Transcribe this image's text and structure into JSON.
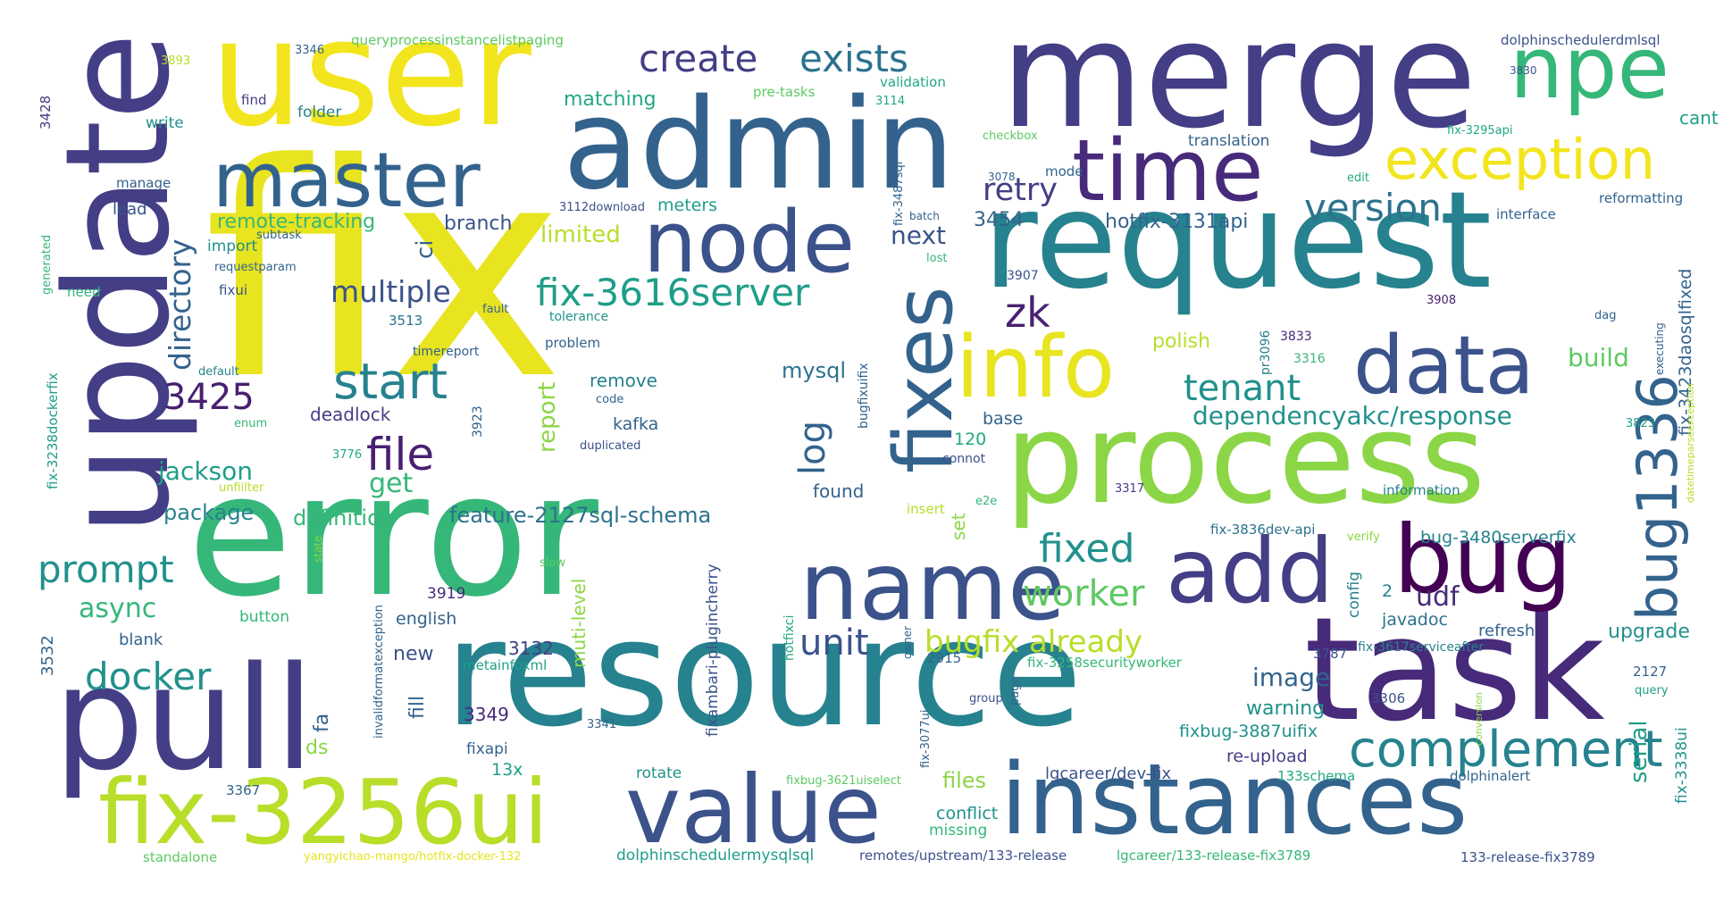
{
  "palette": {
    "c1": "#e8e41f",
    "c2": "#f2e51d",
    "c3": "#b8de29",
    "c4": "#8bd646",
    "c5": "#5ec962",
    "c6": "#35b779",
    "c7": "#22a884",
    "c8": "#1f9e89",
    "c9": "#21918c",
    "c10": "#26828e",
    "c11": "#2c728e",
    "c12": "#33638d",
    "c13": "#3b528b",
    "c14": "#433e85",
    "c15": "#472a7a",
    "c16": "#482071",
    "c17": "#440154"
  },
  "words": [
    {
      "text": "fix",
      "color": "c1"
    },
    {
      "text": "error",
      "color": "c6"
    },
    {
      "text": "resource",
      "color": "c10"
    },
    {
      "text": "merge",
      "color": "c14"
    },
    {
      "text": "user",
      "color": "c2"
    },
    {
      "text": "request",
      "color": "c10"
    },
    {
      "text": "process",
      "color": "c4"
    },
    {
      "text": "update",
      "color": "c14"
    },
    {
      "text": "admin",
      "color": "c12"
    },
    {
      "text": "pull",
      "color": "c14"
    },
    {
      "text": "task",
      "color": "c15"
    },
    {
      "text": "instances",
      "color": "c12"
    },
    {
      "text": "value",
      "color": "c13"
    },
    {
      "text": "fix-3256ui",
      "color": "c3"
    },
    {
      "text": "name",
      "color": "c13"
    },
    {
      "text": "master",
      "color": "c12"
    },
    {
      "text": "node",
      "color": "c13"
    },
    {
      "text": "time",
      "color": "c15"
    },
    {
      "text": "npe",
      "color": "c6"
    },
    {
      "text": "exception",
      "color": "c2"
    },
    {
      "text": "info",
      "color": "c1"
    },
    {
      "text": "data",
      "color": "c13"
    },
    {
      "text": "add",
      "color": "c14"
    },
    {
      "text": "bug",
      "color": "c17"
    },
    {
      "text": "fixes",
      "color": "c12"
    },
    {
      "text": "bug1336",
      "color": "c12"
    },
    {
      "text": "complement",
      "color": "c10"
    },
    {
      "text": "create",
      "color": "c14"
    },
    {
      "text": "exists",
      "color": "c11"
    },
    {
      "text": "version",
      "color": "c11"
    },
    {
      "text": "fix-3616server",
      "color": "c8"
    },
    {
      "text": "start",
      "color": "c10"
    },
    {
      "text": "3425",
      "color": "c16"
    },
    {
      "text": "file",
      "color": "c16"
    },
    {
      "text": "multiple",
      "color": "c13"
    },
    {
      "text": "zk",
      "color": "c16"
    },
    {
      "text": "retry",
      "color": "c14"
    },
    {
      "text": "next",
      "color": "c13"
    },
    {
      "text": "tenant",
      "color": "c9"
    },
    {
      "text": "directory",
      "color": "c12"
    },
    {
      "text": "prompt",
      "color": "c9"
    },
    {
      "text": "docker",
      "color": "c9"
    },
    {
      "text": "fixed",
      "color": "c9"
    },
    {
      "text": "worker",
      "color": "c5"
    },
    {
      "text": "unit",
      "color": "c13"
    },
    {
      "text": "bugfix already",
      "color": "c3"
    },
    {
      "text": "async",
      "color": "c6"
    },
    {
      "text": "jackson",
      "color": "c8"
    },
    {
      "text": "get",
      "color": "c6"
    },
    {
      "text": "log",
      "color": "c12"
    },
    {
      "text": "udf",
      "color": "c15"
    },
    {
      "text": "serial",
      "color": "c8"
    },
    {
      "text": "upgrade",
      "color": "c9"
    },
    {
      "text": "image",
      "color": "c12"
    },
    {
      "text": "dependencyakc/response",
      "color": "c9"
    },
    {
      "text": "remote-tracking",
      "color": "c6"
    },
    {
      "text": "branch",
      "color": "c13"
    },
    {
      "text": "limited",
      "color": "c3"
    },
    {
      "text": "3454",
      "color": "c12"
    },
    {
      "text": "hotfix-3131api",
      "color": "c12"
    },
    {
      "text": "build",
      "color": "c5"
    },
    {
      "text": "feature-2127sql-schema",
      "color": "c11"
    },
    {
      "text": "definition",
      "color": "c6"
    },
    {
      "text": "package",
      "color": "c10"
    },
    {
      "text": "bug-3480serverfix",
      "color": "c10"
    },
    {
      "text": "fix-3423daosqlfixed",
      "color": "c12"
    },
    {
      "text": "polish",
      "color": "c3"
    },
    {
      "text": "mysql",
      "color": "c11"
    },
    {
      "text": "report",
      "color": "c4"
    },
    {
      "text": "remove",
      "color": "c10"
    },
    {
      "text": "kafka",
      "color": "c12"
    },
    {
      "text": "deadlock",
      "color": "c14"
    },
    {
      "text": "ci",
      "color": "c12"
    },
    {
      "text": "matching",
      "color": "c7"
    },
    {
      "text": "meters",
      "color": "c8"
    },
    {
      "text": "found",
      "color": "c12"
    },
    {
      "text": "base",
      "color": "c12"
    },
    {
      "text": "3132",
      "color": "c14"
    },
    {
      "text": "3349",
      "color": "c15"
    },
    {
      "text": "muti-level",
      "color": "c4"
    },
    {
      "text": "new",
      "color": "c13"
    },
    {
      "text": "fill",
      "color": "c12"
    },
    {
      "text": "fa",
      "color": "c12"
    },
    {
      "text": "ds",
      "color": "c4"
    },
    {
      "text": "13x",
      "color": "c8"
    },
    {
      "text": "re-upload",
      "color": "c14"
    },
    {
      "text": "warning",
      "color": "c9"
    },
    {
      "text": "fixbug-3887uifix",
      "color": "c9"
    },
    {
      "text": "files",
      "color": "c4"
    },
    {
      "text": "conflict",
      "color": "c9"
    },
    {
      "text": "missing",
      "color": "c6"
    },
    {
      "text": "javadoc",
      "color": "c11"
    },
    {
      "text": "config",
      "color": "c10"
    },
    {
      "text": "2",
      "color": "c10"
    },
    {
      "text": "refresh",
      "color": "c12"
    },
    {
      "text": "fix-3338ui",
      "color": "c9"
    },
    {
      "text": "lgcareer/dev-fix",
      "color": "c13"
    },
    {
      "text": "dolphinalert",
      "color": "c12"
    },
    {
      "text": "133schema",
      "color": "c7"
    },
    {
      "text": "fixambari-plugincherry",
      "color": "c13"
    },
    {
      "text": "set",
      "color": "c4"
    },
    {
      "text": "120",
      "color": "c7"
    },
    {
      "text": "english",
      "color": "c12"
    },
    {
      "text": "blank",
      "color": "c12"
    },
    {
      "text": "3532",
      "color": "c12"
    },
    {
      "text": "3919",
      "color": "c15"
    },
    {
      "text": "button",
      "color": "c6"
    },
    {
      "text": "invalidformatexception",
      "color": "c12"
    },
    {
      "text": "metainfoxml",
      "color": "c8"
    },
    {
      "text": "fixapi",
      "color": "c12"
    },
    {
      "text": "3341",
      "color": "c12"
    },
    {
      "text": "rotate",
      "color": "c9"
    },
    {
      "text": "3367",
      "color": "c12"
    },
    {
      "text": "standalone",
      "color": "c5"
    },
    {
      "text": "yangyichao-mango/hotfix-docker-132",
      "color": "c1"
    },
    {
      "text": "dolphinschedulermysqlsql",
      "color": "c8"
    },
    {
      "text": "remotes/upstream/133-release",
      "color": "c13"
    },
    {
      "text": "lgcareer/133-release-fix3789",
      "color": "c6"
    },
    {
      "text": "133-release-fix3789",
      "color": "c13"
    },
    {
      "text": "fixbug-3621uiselect",
      "color": "c5"
    },
    {
      "text": "fix-3077ui",
      "color": "c12"
    },
    {
      "text": "hotfixci",
      "color": "c7"
    },
    {
      "text": "2915",
      "color": "c12"
    },
    {
      "text": "owner",
      "color": "c12"
    },
    {
      "text": "fix-3258securityworker",
      "color": "c6"
    },
    {
      "text": "group",
      "color": "c13"
    },
    {
      "text": "page",
      "color": "c12"
    },
    {
      "text": "3306",
      "color": "c13"
    },
    {
      "text": "3787",
      "color": "c13"
    },
    {
      "text": "fix-3617serviceafter",
      "color": "c10"
    },
    {
      "text": "2127",
      "color": "c12"
    },
    {
      "text": "query",
      "color": "c8"
    },
    {
      "text": "conversion",
      "color": "c4"
    },
    {
      "text": "verify",
      "color": "c4"
    },
    {
      "text": "fix-3836dev-api",
      "color": "c11"
    },
    {
      "text": "information",
      "color": "c10"
    },
    {
      "text": "datetimeparseexception",
      "color": "c3"
    },
    {
      "text": "3823",
      "color": "c8"
    },
    {
      "text": "executing",
      "color": "c12"
    },
    {
      "text": "3316",
      "color": "c6"
    },
    {
      "text": "3833",
      "color": "c15"
    },
    {
      "text": "pr3096",
      "color": "c10"
    },
    {
      "text": "dag",
      "color": "c12"
    },
    {
      "text": "3908",
      "color": "c16"
    },
    {
      "text": "3907",
      "color": "c13"
    },
    {
      "text": "3317",
      "color": "c14"
    },
    {
      "text": "e2e",
      "color": "c6"
    },
    {
      "text": "insert",
      "color": "c3"
    },
    {
      "text": "connot",
      "color": "c13"
    },
    {
      "text": "bugfixuifix",
      "color": "c12"
    },
    {
      "text": "lost",
      "color": "c6"
    },
    {
      "text": "batch",
      "color": "c12"
    },
    {
      "text": "fix-3487sql",
      "color": "c12"
    },
    {
      "text": "3078",
      "color": "c12"
    },
    {
      "text": "mode",
      "color": "c12"
    },
    {
      "text": "edit",
      "color": "c7"
    },
    {
      "text": "checkbox",
      "color": "c5"
    },
    {
      "text": "fix-3295api",
      "color": "c7"
    },
    {
      "text": "interface",
      "color": "c12"
    },
    {
      "text": "reformatting",
      "color": "c12"
    },
    {
      "text": "translation",
      "color": "c12"
    },
    {
      "text": "cant",
      "color": "c8"
    },
    {
      "text": "3830",
      "color": "c13"
    },
    {
      "text": "dolphinschedulerdmlsql",
      "color": "c13"
    },
    {
      "text": "validation",
      "color": "c7"
    },
    {
      "text": "3114",
      "color": "c7"
    },
    {
      "text": "pre-tasks",
      "color": "c5"
    },
    {
      "text": "queryprocessinstancelistpaging",
      "color": "c5"
    },
    {
      "text": "3346",
      "color": "c12"
    },
    {
      "text": "3893",
      "color": "c3"
    },
    {
      "text": "3428",
      "color": "c14"
    },
    {
      "text": "find",
      "color": "c14"
    },
    {
      "text": "folder",
      "color": "c10"
    },
    {
      "text": "write",
      "color": "c9"
    },
    {
      "text": "manage",
      "color": "c12"
    },
    {
      "text": "lead",
      "color": "c13"
    },
    {
      "text": "subtask",
      "color": "c12"
    },
    {
      "text": "import",
      "color": "c9"
    },
    {
      "text": "generated",
      "color": "c6"
    },
    {
      "text": "requestparam",
      "color": "c12"
    },
    {
      "text": "need",
      "color": "c6"
    },
    {
      "text": "fixui",
      "color": "c13"
    },
    {
      "text": "fault",
      "color": "c12"
    },
    {
      "text": "3513",
      "color": "c11"
    },
    {
      "text": "tolerance",
      "color": "c9"
    },
    {
      "text": "problem",
      "color": "c12"
    },
    {
      "text": "timereport",
      "color": "c12"
    },
    {
      "text": "default",
      "color": "c10"
    },
    {
      "text": "fix-3238dockerfix",
      "color": "c8"
    },
    {
      "text": "enum",
      "color": "c6"
    },
    {
      "text": "3923",
      "color": "c12"
    },
    {
      "text": "code",
      "color": "c12"
    },
    {
      "text": "duplicated",
      "color": "c13"
    },
    {
      "text": "3776",
      "color": "c7"
    },
    {
      "text": "unfiilter",
      "color": "c3"
    },
    {
      "text": "3112download",
      "color": "c13"
    },
    {
      "text": "state",
      "color": "c4"
    },
    {
      "text": "slow",
      "color": "c5"
    }
  ]
}
